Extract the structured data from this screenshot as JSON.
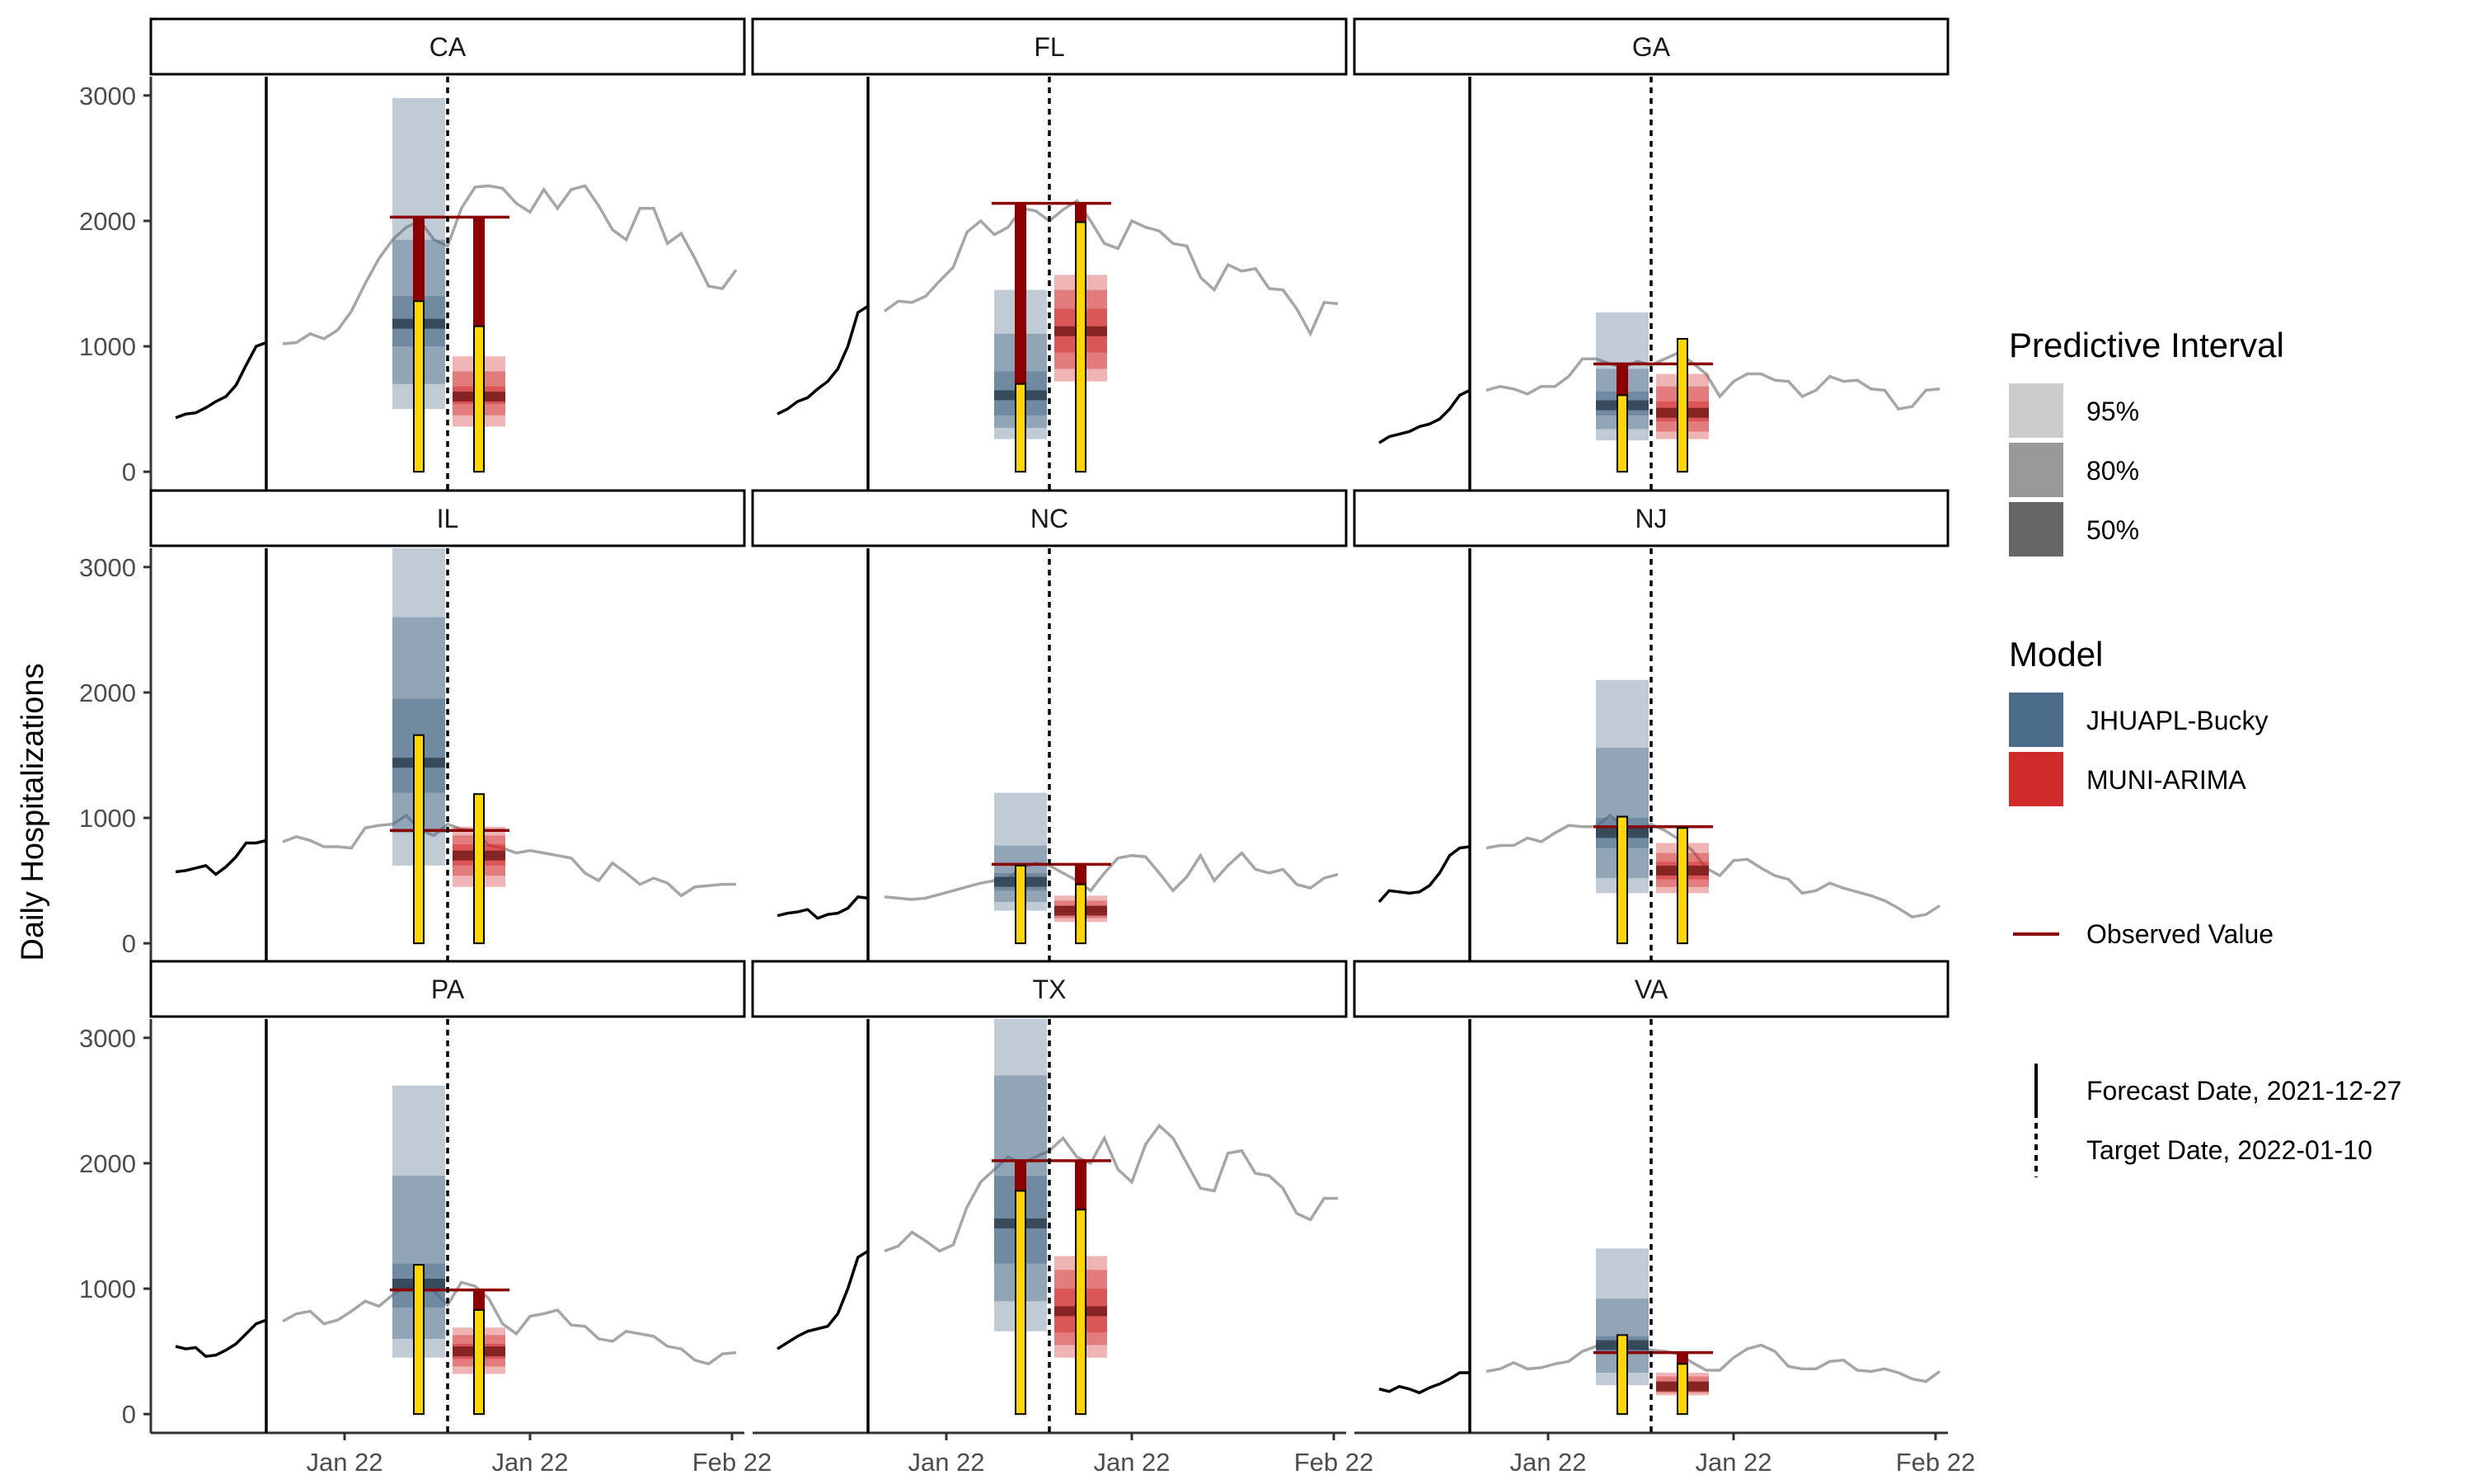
{
  "chart_data": {
    "type": "line",
    "ylabel": "Daily Hospitalizations",
    "xlabel": "",
    "ylim": [
      -150,
      3150
    ],
    "y_ticks": [
      0,
      1000,
      2000,
      3000
    ],
    "x_tick_labels": [
      "Jan 22",
      "Jan 22",
      "Feb 22"
    ],
    "grid": false,
    "legend_placement": "right",
    "legend": {
      "interval_title": "Predictive Interval",
      "interval_levels": [
        "95%",
        "80%",
        "50%"
      ],
      "interval_colors": [
        "#cccccc",
        "#999999",
        "#666666"
      ],
      "model_title": "Model",
      "models": [
        {
          "name": "JHUAPL-Bucky",
          "color": "#4a6b8a"
        },
        {
          "name": "MUNI-ARIMA",
          "color": "#d12a2a"
        }
      ],
      "observed_label": "Observed Value",
      "observed_color": "#8b0000",
      "forecast_label": "Forecast Date, 2021-12-27",
      "target_label": "Target Date, 2022-01-10"
    },
    "colors": {
      "truth": "#000000",
      "future": "#a6a6a6",
      "score_bar": "#ffd700"
    },
    "panels": [
      {
        "name": "CA",
        "history": [
          430,
          460,
          470,
          510,
          560,
          600,
          690,
          850,
          1000,
          1030
        ],
        "future": [
          1020,
          1030,
          1100,
          1060,
          1130,
          1280,
          1500,
          1700,
          1850,
          1950,
          2000,
          1850,
          1800,
          2100,
          2270,
          2280,
          2260,
          2140,
          2070,
          2250,
          2100,
          2250,
          2280,
          2120,
          1930,
          1850,
          2100,
          2100,
          1820,
          1900,
          1700,
          1480,
          1460,
          1610
        ],
        "observed": 2030,
        "models": [
          {
            "median": 1180,
            "i50": [
              1000,
              1400
            ],
            "i80": [
              700,
              1850
            ],
            "i95": [
              500,
              2980
            ],
            "score": 1360
          },
          {
            "median": 600,
            "i50": [
              540,
              680
            ],
            "i80": [
              450,
              800
            ],
            "i95": [
              360,
              920
            ],
            "score": 1160
          }
        ]
      },
      {
        "name": "FL",
        "history": [
          460,
          500,
          560,
          590,
          660,
          720,
          820,
          1000,
          1270,
          1320
        ],
        "future": [
          1280,
          1360,
          1350,
          1400,
          1520,
          1630,
          1910,
          2000,
          1890,
          1950,
          2100,
          2080,
          2000,
          2090,
          2160,
          2000,
          1820,
          1780,
          2000,
          1950,
          1920,
          1820,
          1800,
          1550,
          1450,
          1650,
          1600,
          1620,
          1460,
          1450,
          1300,
          1100,
          1350,
          1340
        ],
        "observed": 2140,
        "models": [
          {
            "median": 610,
            "i50": [
              450,
              800
            ],
            "i80": [
              350,
              1100
            ],
            "i95": [
              260,
              1450
            ],
            "score": 700
          },
          {
            "median": 1120,
            "i50": [
              950,
              1300
            ],
            "i80": [
              820,
              1450
            ],
            "i95": [
              720,
              1570
            ],
            "score": 1990
          }
        ]
      },
      {
        "name": "GA",
        "history": [
          230,
          280,
          300,
          320,
          360,
          380,
          420,
          500,
          610,
          650
        ],
        "future": [
          650,
          680,
          660,
          620,
          680,
          680,
          760,
          900,
          900,
          860,
          830,
          880,
          850,
          900,
          950,
          870,
          780,
          600,
          720,
          780,
          780,
          730,
          720,
          600,
          650,
          760,
          720,
          730,
          660,
          650,
          500,
          520,
          650,
          660
        ],
        "observed": 860,
        "models": [
          {
            "median": 530,
            "i50": [
              450,
              640
            ],
            "i80": [
              340,
              820
            ],
            "i95": [
              250,
              1270
            ],
            "score": 610
          },
          {
            "median": 470,
            "i50": [
              400,
              560
            ],
            "i80": [
              320,
              680
            ],
            "i95": [
              260,
              780
            ],
            "score": 1060
          }
        ]
      },
      {
        "name": "IL",
        "history": [
          570,
          580,
          600,
          620,
          550,
          610,
          690,
          800,
          800,
          820
        ],
        "future": [
          810,
          850,
          820,
          770,
          770,
          760,
          920,
          940,
          950,
          1020,
          900,
          860,
          950,
          910,
          900,
          780,
          760,
          720,
          740,
          720,
          700,
          680,
          560,
          500,
          640,
          560,
          470,
          520,
          480,
          380,
          450,
          460,
          470,
          470
        ],
        "observed": 900,
        "models": [
          {
            "median": 1440,
            "i50": [
              1200,
              1950
            ],
            "i80": [
              880,
              2600
            ],
            "i95": [
              620,
              3150
            ],
            "score": 1660
          },
          {
            "median": 700,
            "i50": [
              620,
              790
            ],
            "i80": [
              540,
              860
            ],
            "i95": [
              450,
              930
            ],
            "score": 1190
          }
        ]
      },
      {
        "name": "NC",
        "history": [
          220,
          240,
          250,
          270,
          200,
          230,
          240,
          280,
          370,
          360
        ],
        "future": [
          370,
          360,
          350,
          360,
          390,
          420,
          450,
          480,
          500,
          520,
          600,
          640,
          620,
          560,
          500,
          420,
          560,
          680,
          700,
          690,
          560,
          420,
          530,
          700,
          500,
          620,
          720,
          590,
          560,
          590,
          470,
          440,
          520,
          550
        ],
        "observed": 630,
        "models": [
          {
            "median": 490,
            "i50": [
              420,
              560
            ],
            "i80": [
              330,
              780
            ],
            "i95": [
              260,
              1200
            ],
            "score": 620
          },
          {
            "median": 260,
            "i50": [
              230,
              300
            ],
            "i80": [
              200,
              340
            ],
            "i95": [
              170,
              380
            ],
            "score": 470
          }
        ]
      },
      {
        "name": "NJ",
        "history": [
          330,
          420,
          410,
          400,
          410,
          460,
          560,
          700,
          760,
          770
        ],
        "future": [
          760,
          780,
          780,
          840,
          810,
          880,
          940,
          930,
          930,
          1020,
          940,
          900,
          950,
          900,
          830,
          740,
          600,
          540,
          660,
          670,
          600,
          540,
          510,
          400,
          420,
          480,
          440,
          410,
          380,
          340,
          280,
          210,
          230,
          300
        ],
        "observed": 930,
        "models": [
          {
            "median": 880,
            "i50": [
              760,
              1000
            ],
            "i80": [
              520,
              1560
            ],
            "i95": [
              400,
              2100
            ],
            "score": 1010
          },
          {
            "median": 580,
            "i50": [
              510,
              650
            ],
            "i80": [
              450,
              720
            ],
            "i95": [
              400,
              800
            ],
            "score": 920
          }
        ]
      },
      {
        "name": "PA",
        "history": [
          540,
          520,
          530,
          460,
          470,
          510,
          560,
          640,
          720,
          750
        ],
        "future": [
          740,
          800,
          820,
          720,
          750,
          820,
          900,
          860,
          950,
          1020,
          1000,
          980,
          870,
          1050,
          1020,
          920,
          720,
          640,
          780,
          800,
          830,
          710,
          700,
          600,
          580,
          660,
          640,
          620,
          540,
          520,
          430,
          400,
          480,
          490
        ],
        "observed": 990,
        "models": [
          {
            "median": 1040,
            "i50": [
              850,
              1200
            ],
            "i80": [
              600,
              1900
            ],
            "i95": [
              450,
              2620
            ],
            "score": 1190
          },
          {
            "median": 500,
            "i50": [
              440,
              560
            ],
            "i80": [
              380,
              630
            ],
            "i95": [
              320,
              690
            ],
            "score": 830
          }
        ]
      },
      {
        "name": "TX",
        "history": [
          520,
          570,
          620,
          660,
          680,
          700,
          800,
          1000,
          1250,
          1300
        ],
        "future": [
          1300,
          1340,
          1450,
          1380,
          1300,
          1350,
          1650,
          1850,
          1950,
          2050,
          2000,
          2050,
          2100,
          2200,
          2050,
          2000,
          2200,
          1950,
          1850,
          2150,
          2300,
          2200,
          2000,
          1800,
          1780,
          2080,
          2100,
          1920,
          1900,
          1800,
          1600,
          1550,
          1720,
          1720
        ],
        "observed": 2020,
        "models": [
          {
            "median": 1520,
            "i50": [
              1200,
              1900
            ],
            "i80": [
              900,
              2700
            ],
            "i95": [
              660,
              3150
            ],
            "score": 1780
          },
          {
            "median": 820,
            "i50": [
              650,
              1000
            ],
            "i80": [
              550,
              1150
            ],
            "i95": [
              450,
              1260
            ],
            "score": 1630
          }
        ]
      },
      {
        "name": "VA",
        "history": [
          200,
          180,
          220,
          200,
          170,
          210,
          240,
          280,
          330,
          330
        ],
        "future": [
          340,
          360,
          410,
          360,
          370,
          400,
          420,
          500,
          540,
          560,
          560,
          530,
          510,
          500,
          480,
          410,
          350,
          350,
          450,
          520,
          550,
          500,
          380,
          360,
          360,
          420,
          430,
          350,
          340,
          360,
          330,
          280,
          260,
          340
        ],
        "observed": 490,
        "models": [
          {
            "median": 550,
            "i50": [
              480,
              620
            ],
            "i80": [
              330,
              920
            ],
            "i95": [
              230,
              1320
            ],
            "score": 630
          },
          {
            "median": 220,
            "i50": [
              190,
              260
            ],
            "i80": [
              170,
              300
            ],
            "i95": [
              150,
              330
            ],
            "score": 400
          }
        ]
      }
    ]
  }
}
